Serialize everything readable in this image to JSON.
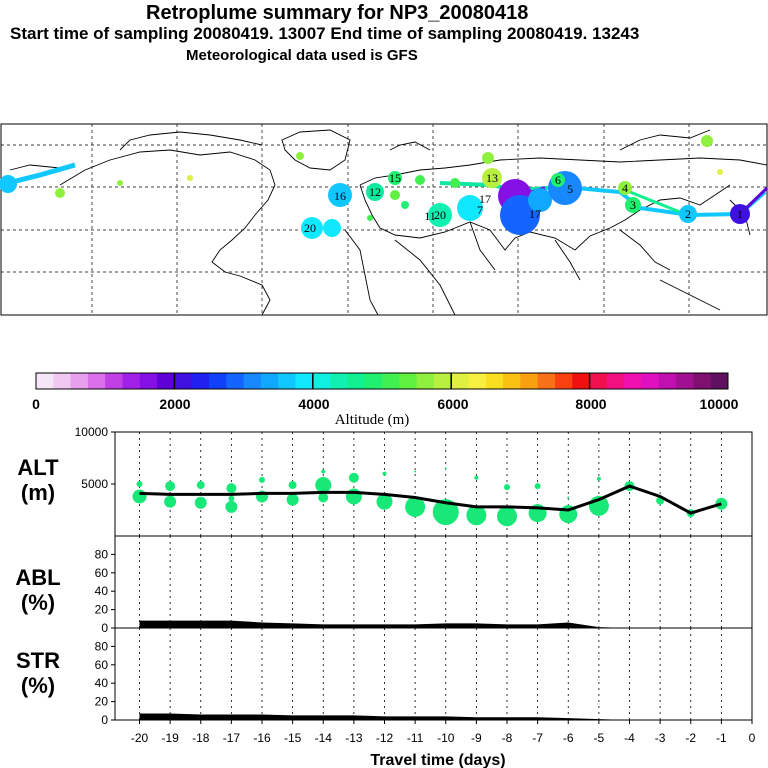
{
  "header": {
    "title": "Retroplume summary for NP3_20080418",
    "line2": "Start time of sampling 20080419. 13007     End time of sampling 20080419. 13243",
    "line3": "Meteorological data used is GFS"
  },
  "map": {
    "labels": [
      "16",
      "20",
      "20",
      "17",
      "13",
      "15",
      "11",
      "17",
      "12",
      "7",
      "6",
      "5",
      "4",
      "3",
      "2",
      "1"
    ]
  },
  "colorbar": {
    "ticks": [
      "0",
      "2000",
      "4000",
      "6000",
      "8000",
      "10000"
    ],
    "label": "Altitude (m)",
    "colors": [
      "#f4e6f7",
      "#f0c8f2",
      "#e6a0ee",
      "#da70ea",
      "#c040e6",
      "#a020e8",
      "#8410e6",
      "#6000d8",
      "#4010e0",
      "#2020f0",
      "#1040f8",
      "#1464ff",
      "#1888ff",
      "#10a8ff",
      "#10c8ff",
      "#10e8ff",
      "#10f0e0",
      "#10f0b0",
      "#10f090",
      "#20f070",
      "#40f050",
      "#60f040",
      "#90f040",
      "#b8f040",
      "#e0f040",
      "#f8f040",
      "#f8e020",
      "#f8c010",
      "#f8a010",
      "#f87018",
      "#f84010",
      "#f01010",
      "#f01050",
      "#f01080",
      "#f010b0",
      "#e010c0",
      "#c010b0",
      "#a01090",
      "#801070",
      "#601060"
    ]
  },
  "chart_data": [
    {
      "type": "line",
      "panel": "ALT",
      "ylabel": "ALT\n(m)",
      "ylabel_line1": "ALT",
      "ylabel_line2": "(m)",
      "ylim": [
        0,
        10000
      ],
      "yticks": [
        "5000",
        "10000"
      ],
      "x": [
        -20,
        -19,
        -18,
        -17,
        -16,
        -15,
        -14,
        -13,
        -12,
        -11,
        -10,
        -9,
        -8,
        -7,
        -6,
        -5,
        -4,
        -3,
        -2,
        -1
      ],
      "series": [
        {
          "name": "mean altitude",
          "values": [
            4100,
            4000,
            4000,
            4000,
            4100,
            4100,
            4200,
            4200,
            4000,
            3700,
            3200,
            2800,
            2800,
            2700,
            2500,
            3500,
            4800,
            3800,
            2200,
            3100
          ]
        }
      ],
      "scatter": [
        {
          "x": -20,
          "y": 3800,
          "r": 7
        },
        {
          "x": -20,
          "y": 5000,
          "r": 3
        },
        {
          "x": -19,
          "y": 3300,
          "r": 6
        },
        {
          "x": -19,
          "y": 4800,
          "r": 5
        },
        {
          "x": -18,
          "y": 3200,
          "r": 6
        },
        {
          "x": -18,
          "y": 4900,
          "r": 4
        },
        {
          "x": -17,
          "y": 2800,
          "r": 6
        },
        {
          "x": -17,
          "y": 4600,
          "r": 5
        },
        {
          "x": -17,
          "y": 3600,
          "r": 3
        },
        {
          "x": -16,
          "y": 3800,
          "r": 6
        },
        {
          "x": -16,
          "y": 5400,
          "r": 3
        },
        {
          "x": -15,
          "y": 3500,
          "r": 6
        },
        {
          "x": -15,
          "y": 4900,
          "r": 4
        },
        {
          "x": -14,
          "y": 4900,
          "r": 8
        },
        {
          "x": -14,
          "y": 3700,
          "r": 5
        },
        {
          "x": -14,
          "y": 6200,
          "r": 2
        },
        {
          "x": -13,
          "y": 3800,
          "r": 8
        },
        {
          "x": -13,
          "y": 5600,
          "r": 5
        },
        {
          "x": -12,
          "y": 3300,
          "r": 8
        },
        {
          "x": -12,
          "y": 6000,
          "r": 2
        },
        {
          "x": -11,
          "y": 2800,
          "r": 10
        },
        {
          "x": -11,
          "y": 6200,
          "r": 1
        },
        {
          "x": -10,
          "y": 2300,
          "r": 13
        },
        {
          "x": -10,
          "y": 6500,
          "r": 1
        },
        {
          "x": -9,
          "y": 2000,
          "r": 10
        },
        {
          "x": -9,
          "y": 5600,
          "r": 2
        },
        {
          "x": -8,
          "y": 1900,
          "r": 10
        },
        {
          "x": -8,
          "y": 4700,
          "r": 3
        },
        {
          "x": -7,
          "y": 2200,
          "r": 9
        },
        {
          "x": -7,
          "y": 4800,
          "r": 3
        },
        {
          "x": -6,
          "y": 2100,
          "r": 9
        },
        {
          "x": -6,
          "y": 3700,
          "r": 1
        },
        {
          "x": -5,
          "y": 2900,
          "r": 10
        },
        {
          "x": -5,
          "y": 5500,
          "r": 2
        },
        {
          "x": -4,
          "y": 4800,
          "r": 5
        },
        {
          "x": -3,
          "y": 3400,
          "r": 4
        },
        {
          "x": -2,
          "y": 2200,
          "r": 4
        },
        {
          "x": -1,
          "y": 3100,
          "r": 6
        }
      ]
    },
    {
      "type": "area",
      "panel": "ABL",
      "ylabel_line1": "ABL",
      "ylabel_line2": "(%)",
      "ylim": [
        0,
        100
      ],
      "yticks": [
        "0",
        "20",
        "40",
        "60",
        "80"
      ],
      "x": [
        -20,
        -19,
        -18,
        -17,
        -16,
        -15,
        -14,
        -13,
        -12,
        -11,
        -10,
        -9,
        -8,
        -7,
        -6,
        -5,
        -4,
        -3,
        -2,
        -1
      ],
      "series": [
        {
          "name": "ABL",
          "values": [
            8,
            8,
            8,
            8,
            6,
            5,
            4,
            4,
            4,
            4,
            5,
            5,
            4,
            4,
            6,
            1,
            0,
            0,
            0,
            0
          ]
        }
      ]
    },
    {
      "type": "area",
      "panel": "STR",
      "ylabel_line1": "STR",
      "ylabel_line2": "(%)",
      "ylim": [
        0,
        100
      ],
      "yticks": [
        "0",
        "20",
        "40",
        "60",
        "80"
      ],
      "x": [
        -20,
        -19,
        -18,
        -17,
        -16,
        -15,
        -14,
        -13,
        -12,
        -11,
        -10,
        -9,
        -8,
        -7,
        -6,
        -5,
        -4,
        -3,
        -2,
        -1
      ],
      "series": [
        {
          "name": "STR",
          "values": [
            7,
            7,
            6,
            6,
            6,
            5,
            5,
            5,
            4,
            4,
            4,
            3,
            3,
            3,
            2,
            1,
            0,
            0,
            0,
            0
          ]
        }
      ],
      "xlabel": "Travel time (days)",
      "xticks": [
        "-20",
        "-19",
        "-18",
        "-17",
        "-16",
        "-15",
        "-14",
        "-13",
        "-12",
        "-11",
        "-10",
        "-9",
        "-8",
        "-7",
        "-6",
        "-5",
        "-4",
        "-3",
        "-2",
        "-1",
        "0"
      ]
    }
  ]
}
